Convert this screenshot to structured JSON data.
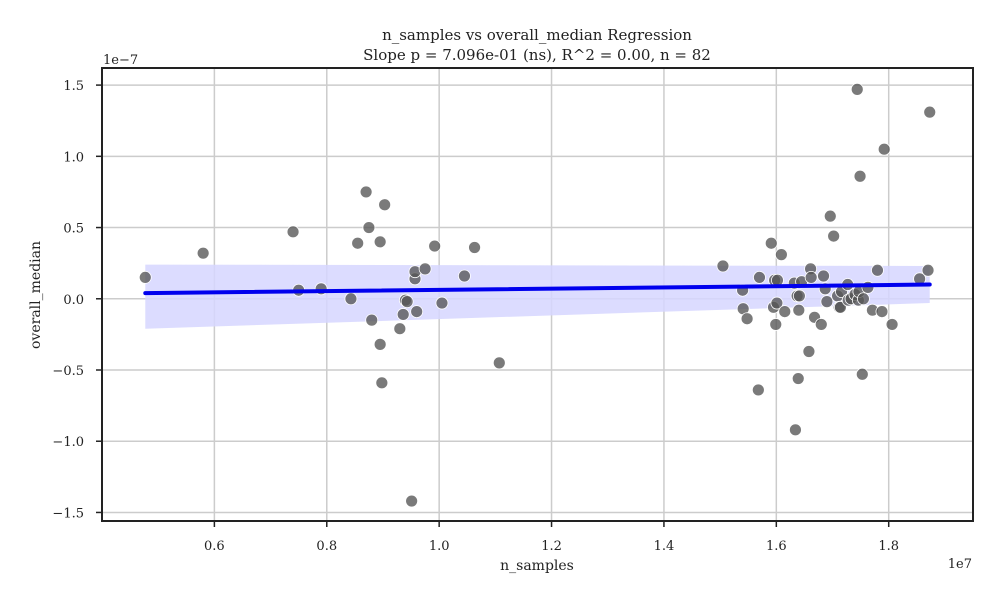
{
  "chart_data": {
    "type": "scatter",
    "title": "n_samples vs overall_median Regression",
    "subtitle": "Slope p = 7.096e-01 (ns), R^2 = 0.00, n = 82",
    "xlabel": "n_samples",
    "ylabel": "overall_median",
    "x_offset_label": "1e7",
    "y_offset_label": "1e−7",
    "xlim": [
      0.4,
      1.95
    ],
    "ylim": [
      -1.56,
      1.62
    ],
    "xticks": [
      0.6,
      0.8,
      1.0,
      1.2,
      1.4,
      1.6,
      1.8
    ],
    "xtick_labels": [
      "0.6",
      "0.8",
      "1.0",
      "1.2",
      "1.4",
      "1.6",
      "1.8"
    ],
    "yticks": [
      -1.5,
      -1.0,
      -0.5,
      0.0,
      0.5,
      1.0,
      1.5
    ],
    "ytick_labels": [
      "−1.5",
      "−1.0",
      "−0.5",
      "0.0",
      "0.5",
      "1.0",
      "1.5"
    ],
    "grid": true,
    "points": [
      [
        0.477,
        0.15
      ],
      [
        0.58,
        0.32
      ],
      [
        0.74,
        0.47
      ],
      [
        0.75,
        0.06
      ],
      [
        0.79,
        0.07
      ],
      [
        0.843,
        0.0
      ],
      [
        0.855,
        0.39
      ],
      [
        0.87,
        0.75
      ],
      [
        0.875,
        0.5
      ],
      [
        0.88,
        -0.15
      ],
      [
        0.895,
        -0.32
      ],
      [
        0.895,
        0.4
      ],
      [
        0.898,
        -0.59
      ],
      [
        0.903,
        0.66
      ],
      [
        0.93,
        -0.21
      ],
      [
        0.936,
        -0.11
      ],
      [
        0.94,
        -0.01
      ],
      [
        0.943,
        -0.02
      ],
      [
        0.951,
        -1.42
      ],
      [
        0.957,
        0.14
      ],
      [
        0.957,
        0.19
      ],
      [
        0.96,
        -0.09
      ],
      [
        0.975,
        0.21
      ],
      [
        0.992,
        0.37
      ],
      [
        1.005,
        -0.03
      ],
      [
        1.045,
        0.16
      ],
      [
        1.063,
        0.36
      ],
      [
        1.107,
        -0.45
      ],
      [
        1.505,
        0.23
      ],
      [
        1.54,
        0.06
      ],
      [
        1.541,
        -0.07
      ],
      [
        1.548,
        -0.14
      ],
      [
        1.568,
        -0.64
      ],
      [
        1.57,
        0.15
      ],
      [
        1.591,
        0.39
      ],
      [
        1.595,
        -0.06
      ],
      [
        1.597,
        0.13
      ],
      [
        1.599,
        -0.18
      ],
      [
        1.601,
        -0.03
      ],
      [
        1.602,
        0.13
      ],
      [
        1.609,
        0.31
      ],
      [
        1.615,
        -0.09
      ],
      [
        1.632,
        0.11
      ],
      [
        1.634,
        -0.92
      ],
      [
        1.637,
        0.02
      ],
      [
        1.639,
        -0.56
      ],
      [
        1.64,
        -0.08
      ],
      [
        1.641,
        0.02
      ],
      [
        1.645,
        0.12
      ],
      [
        1.658,
        -0.37
      ],
      [
        1.661,
        0.21
      ],
      [
        1.662,
        0.15
      ],
      [
        1.668,
        -0.13
      ],
      [
        1.68,
        -0.18
      ],
      [
        1.684,
        0.16
      ],
      [
        1.687,
        0.07
      ],
      [
        1.69,
        -0.02
      ],
      [
        1.696,
        0.58
      ],
      [
        1.702,
        0.44
      ],
      [
        1.709,
        0.02
      ],
      [
        1.712,
        -0.06
      ],
      [
        1.714,
        -0.06
      ],
      [
        1.716,
        0.05
      ],
      [
        1.727,
        0.1
      ],
      [
        1.728,
        -0.01
      ],
      [
        1.733,
        0.0
      ],
      [
        1.74,
        0.03
      ],
      [
        1.744,
        1.47
      ],
      [
        1.746,
        -0.01
      ],
      [
        1.747,
        0.05
      ],
      [
        1.749,
        0.86
      ],
      [
        1.753,
        -0.53
      ],
      [
        1.755,
        0.0
      ],
      [
        1.763,
        0.08
      ],
      [
        1.771,
        -0.08
      ],
      [
        1.78,
        0.2
      ],
      [
        1.788,
        -0.09
      ],
      [
        1.792,
        1.05
      ],
      [
        1.806,
        -0.18
      ],
      [
        1.855,
        0.14
      ],
      [
        1.87,
        0.2
      ],
      [
        1.873,
        1.31
      ]
    ],
    "regression": {
      "x": [
        0.477,
        1.873
      ],
      "y": [
        0.04,
        0.1
      ],
      "ci_lower": [
        -0.21,
        -0.03
      ],
      "ci_upper": [
        0.24,
        0.23
      ]
    },
    "colors": {
      "points": "#555555",
      "line": "#0000ee",
      "band": "#d6d6ff",
      "grid": "#cccccc",
      "frame": "#222222"
    }
  }
}
